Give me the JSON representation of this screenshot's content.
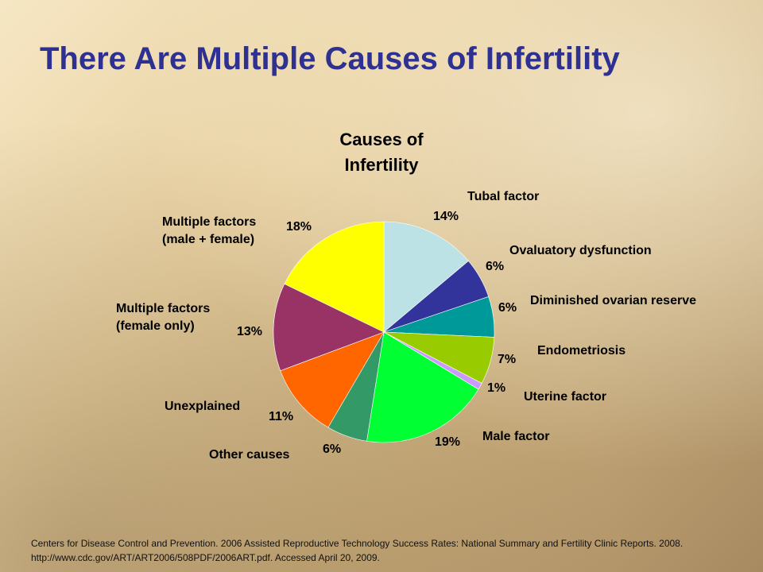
{
  "slide": {
    "title": "There Are Multiple Causes of Infertility",
    "source": "Centers for Disease Control and Prevention. 2006 Assisted Reproductive Technology Success Rates: National Summary and Fertility Clinic Reports. 2008. http://www.cdc.gov/ART/ART2006/508PDF/2006ART.pdf. Accessed April 20, 2009."
  },
  "chart_data": {
    "type": "pie",
    "title_lines": [
      "Causes of",
      "Infertility"
    ],
    "slices": [
      {
        "label_lines": [
          "Tubal factor"
        ],
        "value": 14,
        "value_label": "14%",
        "color": "#bde2e6"
      },
      {
        "label_lines": [
          "Ovaluatory dysfunction"
        ],
        "value": 6,
        "value_label": "6%",
        "color": "#33339c"
      },
      {
        "label_lines": [
          "Diminished ovarian reserve"
        ],
        "value": 6,
        "value_label": "6%",
        "color": "#009999"
      },
      {
        "label_lines": [
          "Endometriosis"
        ],
        "value": 7,
        "value_label": "7%",
        "color": "#99cc00"
      },
      {
        "label_lines": [
          "Uterine factor"
        ],
        "value": 1,
        "value_label": "1%",
        "color": "#cc99ff"
      },
      {
        "label_lines": [
          "Male factor"
        ],
        "value": 19,
        "value_label": "19%",
        "color": "#00ff33"
      },
      {
        "label_lines": [
          "Other causes"
        ],
        "value": 6,
        "value_label": "6%",
        "color": "#339966"
      },
      {
        "label_lines": [
          "Unexplained"
        ],
        "value": 11,
        "value_label": "11%",
        "color": "#ff6600"
      },
      {
        "label_lines": [
          "Multiple factors",
          "(female only)"
        ],
        "value": 13,
        "value_label": "13%",
        "color": "#993366"
      },
      {
        "label_lines": [
          "Multiple factors",
          "(male + female)"
        ],
        "value": 18,
        "value_label": "18%",
        "color": "#ffff00"
      }
    ]
  }
}
